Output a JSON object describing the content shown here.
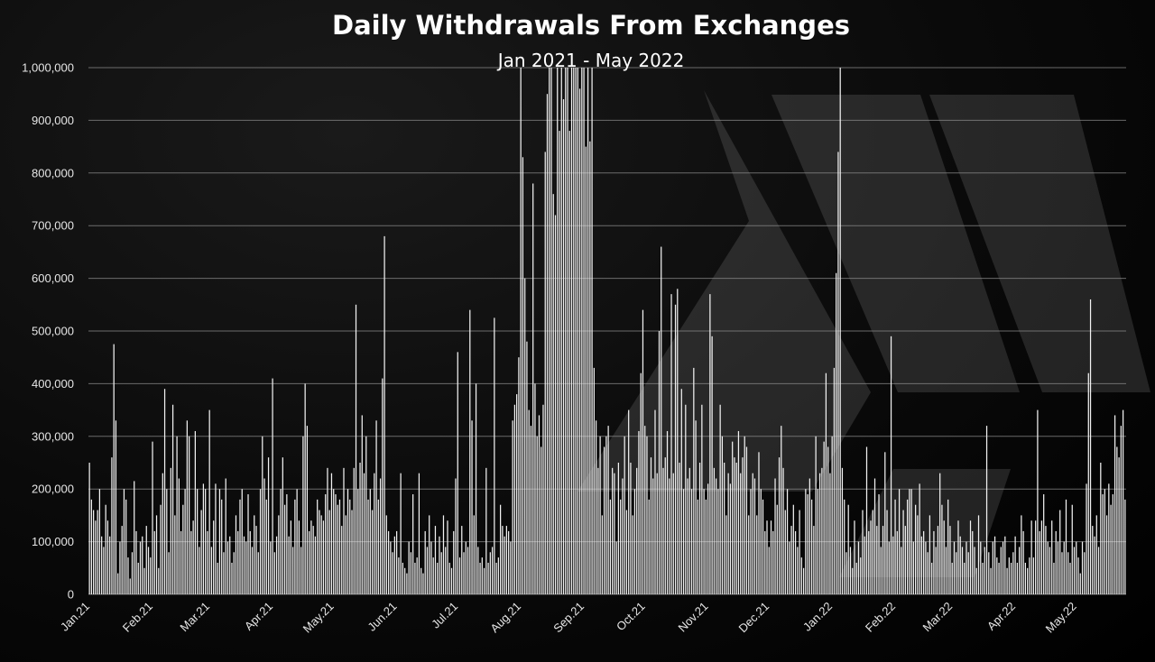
{
  "chart_data": {
    "type": "bar",
    "title": "Daily Withdrawals From Exchanges",
    "subtitle": "Jan 2021 - May 2022",
    "xlabel": "",
    "ylabel": "",
    "ylim": [
      0,
      1000000
    ],
    "grid": true,
    "legend": "none",
    "colors": {
      "bar": "#f2f2f2",
      "grid": "#8a8a8a",
      "background": "#000000",
      "text": "#ffffff"
    },
    "yticks": [
      "0",
      "100,000",
      "200,000",
      "300,000",
      "400,000",
      "500,000",
      "600,000",
      "700,000",
      "800,000",
      "900,000",
      "1,000,000"
    ],
    "xticks": [
      "Jan.21",
      "Feb.21",
      "Mar.21",
      "Apr.21",
      "May.21",
      "Jun.21",
      "Jul.21",
      "Aug.21",
      "Sep.21",
      "Oct.21",
      "Nov.21",
      "Dec.21",
      "Jan.22",
      "Feb.22",
      "Mar.22",
      "Apr.22",
      "May.22"
    ],
    "series": [
      {
        "monthly_values": [
          [
            250000,
            180000,
            160000,
            140000,
            160000,
            200000,
            110000,
            90000,
            170000,
            140000,
            110000,
            260000,
            475000,
            330000,
            40000,
            100000,
            130000,
            200000,
            180000,
            70000,
            30000,
            80000,
            215000,
            120000,
            60000,
            100000,
            110000,
            50000,
            130000,
            90000,
            70000
          ],
          [
            290000,
            120000,
            150000,
            50000,
            170000,
            230000,
            390000,
            200000,
            80000,
            240000,
            360000,
            150000,
            300000,
            220000,
            120000,
            170000,
            200000,
            330000,
            300000,
            120000,
            140000,
            310000,
            200000,
            90000,
            160000,
            210000,
            200000,
            120000
          ],
          [
            350000,
            90000,
            140000,
            210000,
            60000,
            200000,
            180000,
            80000,
            220000,
            100000,
            110000,
            60000,
            80000,
            150000,
            120000,
            180000,
            200000,
            110000,
            100000,
            190000,
            120000,
            90000,
            150000,
            130000,
            80000,
            200000,
            300000,
            220000,
            180000,
            260000,
            100000
          ],
          [
            410000,
            80000,
            110000,
            150000,
            200000,
            260000,
            170000,
            190000,
            110000,
            140000,
            90000,
            180000,
            200000,
            140000,
            90000,
            300000,
            400000,
            320000,
            120000,
            140000,
            130000,
            110000,
            180000,
            160000,
            150000,
            140000,
            190000,
            240000,
            160000,
            230000
          ],
          [
            200000,
            190000,
            170000,
            180000,
            130000,
            240000,
            150000,
            200000,
            180000,
            160000,
            240000,
            550000,
            200000,
            250000,
            340000,
            230000,
            300000,
            180000,
            200000,
            160000,
            230000,
            330000,
            180000,
            220000,
            410000,
            680000,
            150000,
            120000,
            100000,
            80000,
            110000
          ],
          [
            120000,
            70000,
            230000,
            60000,
            50000,
            40000,
            100000,
            80000,
            190000,
            60000,
            70000,
            230000,
            50000,
            40000,
            120000,
            90000,
            150000,
            100000,
            70000,
            130000,
            60000,
            110000,
            80000,
            150000,
            90000,
            140000,
            60000,
            50000,
            120000,
            220000
          ],
          [
            460000,
            70000,
            130000,
            80000,
            100000,
            90000,
            540000,
            330000,
            150000,
            400000,
            90000,
            60000,
            70000,
            50000,
            240000,
            60000,
            80000,
            90000,
            525000,
            60000,
            70000,
            170000,
            130000,
            110000,
            130000,
            120000,
            100000,
            330000,
            360000,
            380000,
            450000
          ],
          [
            1000000,
            830000,
            600000,
            480000,
            350000,
            320000,
            780000,
            400000,
            300000,
            340000,
            280000,
            360000,
            840000,
            950000,
            1000000,
            1000000,
            760000,
            720000,
            1000000,
            880000,
            1000000,
            940000,
            1000000,
            1000000,
            880000,
            1000000,
            1000000,
            1000000,
            1000000,
            960000,
            1000000
          ],
          [
            1000000,
            850000,
            1000000,
            860000,
            1000000,
            430000,
            330000,
            240000,
            300000,
            150000,
            280000,
            300000,
            320000,
            180000,
            240000,
            230000,
            100000,
            250000,
            180000,
            220000,
            300000,
            160000,
            350000,
            250000,
            150000,
            200000,
            240000,
            310000,
            420000,
            540000
          ],
          [
            320000,
            300000,
            180000,
            260000,
            220000,
            350000,
            230000,
            500000,
            660000,
            240000,
            260000,
            310000,
            220000,
            570000,
            230000,
            550000,
            580000,
            250000,
            390000,
            200000,
            360000,
            220000,
            240000,
            200000,
            430000,
            330000,
            180000,
            250000,
            360000,
            200000,
            180000
          ],
          [
            210000,
            570000,
            490000,
            240000,
            220000,
            200000,
            360000,
            300000,
            250000,
            150000,
            230000,
            210000,
            290000,
            260000,
            250000,
            310000,
            230000,
            260000,
            300000,
            280000,
            150000,
            200000,
            230000,
            220000,
            150000,
            270000,
            200000,
            180000,
            120000,
            140000
          ],
          [
            90000,
            140000,
            120000,
            220000,
            170000,
            260000,
            320000,
            240000,
            160000,
            200000,
            100000,
            130000,
            170000,
            120000,
            90000,
            160000,
            70000,
            50000,
            200000,
            190000,
            220000,
            180000,
            130000,
            300000,
            200000,
            230000,
            240000,
            290000,
            420000,
            280000,
            230000
          ],
          [
            300000,
            430000,
            610000,
            840000,
            1000000,
            240000,
            180000,
            80000,
            170000,
            90000,
            50000,
            140000,
            60000,
            100000,
            70000,
            160000,
            110000,
            280000,
            120000,
            140000,
            160000,
            220000,
            130000,
            190000,
            90000,
            130000,
            270000,
            160000,
            100000,
            490000,
            110000
          ],
          [
            180000,
            120000,
            200000,
            90000,
            160000,
            130000,
            180000,
            200000,
            200000,
            100000,
            170000,
            150000,
            210000,
            110000,
            120000,
            100000,
            80000,
            150000,
            60000,
            120000,
            90000,
            130000,
            230000,
            170000,
            140000,
            90000,
            180000,
            130000
          ],
          [
            60000,
            100000,
            80000,
            140000,
            110000,
            90000,
            60000,
            100000,
            80000,
            140000,
            120000,
            90000,
            50000,
            150000,
            100000,
            60000,
            90000,
            320000,
            80000,
            50000,
            100000,
            110000,
            70000,
            60000,
            90000,
            100000,
            110000,
            50000,
            70000,
            60000,
            80000
          ],
          [
            110000,
            60000,
            90000,
            150000,
            120000,
            60000,
            50000,
            70000,
            140000,
            70000,
            140000,
            350000,
            120000,
            140000,
            190000,
            130000,
            100000,
            90000,
            140000,
            60000,
            120000,
            100000,
            160000,
            80000,
            100000,
            180000,
            80000,
            60000,
            170000,
            90000
          ],
          [
            100000,
            70000,
            40000,
            100000,
            80000,
            210000,
            420000,
            560000,
            130000,
            110000,
            150000,
            90000,
            250000,
            190000,
            200000,
            150000,
            210000,
            170000,
            190000,
            340000,
            280000,
            260000,
            320000,
            350000,
            180000
          ]
        ]
      }
    ]
  }
}
